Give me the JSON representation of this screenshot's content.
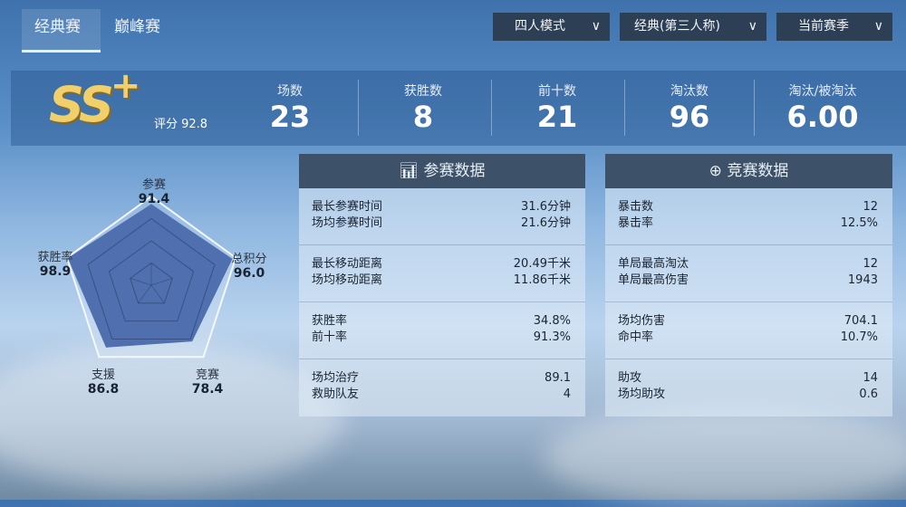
{
  "tabs": [
    {
      "label": "经典赛",
      "active": true
    },
    {
      "label": "巅峰赛",
      "active": false
    }
  ],
  "filters": [
    {
      "label": "四人模式"
    },
    {
      "label": "经典(第三人称)"
    },
    {
      "label": "当前赛季"
    }
  ],
  "rank": {
    "grade": "SS",
    "plus": "+",
    "score_label": "评分 92.8"
  },
  "stats": [
    {
      "label": "场数",
      "value": "23"
    },
    {
      "label": "获胜数",
      "value": "8"
    },
    {
      "label": "前十数",
      "value": "21"
    },
    {
      "label": "淘汰数",
      "value": "96"
    },
    {
      "label": "淘汰/被淘汰",
      "value": "6.00"
    }
  ],
  "chart_data": {
    "type": "radar",
    "range": [
      0,
      100
    ],
    "axes": [
      {
        "label": "参赛",
        "value": "91.4"
      },
      {
        "label": "总积分",
        "value": "96.0"
      },
      {
        "label": "竞赛",
        "value": "78.4"
      },
      {
        "label": "支援",
        "value": "86.8"
      },
      {
        "label": "获胜率",
        "value": "98.9"
      }
    ],
    "fill": "#4f6fae"
  },
  "panels": [
    {
      "title": "参赛数据",
      "icon": "bar-chart-icon",
      "groups": [
        [
          {
            "k": "最长参赛时间",
            "v": "31.6分钟"
          },
          {
            "k": "场均参赛时间",
            "v": "21.6分钟"
          }
        ],
        [
          {
            "k": "最长移动距离",
            "v": "20.49千米"
          },
          {
            "k": "场均移动距离",
            "v": "11.86千米"
          }
        ],
        [
          {
            "k": "获胜率",
            "v": "34.8%"
          },
          {
            "k": "前十率",
            "v": "91.3%"
          }
        ],
        [
          {
            "k": "场均治疗",
            "v": "89.1"
          },
          {
            "k": "救助队友",
            "v": "4"
          }
        ]
      ]
    },
    {
      "title": "竞赛数据",
      "icon": "crosshair-icon",
      "groups": [
        [
          {
            "k": "暴击数",
            "v": "12"
          },
          {
            "k": "暴击率",
            "v": "12.5%"
          }
        ],
        [
          {
            "k": "单局最高淘汰",
            "v": "12"
          },
          {
            "k": "单局最高伤害",
            "v": "1943"
          }
        ],
        [
          {
            "k": "场均伤害",
            "v": "704.1"
          },
          {
            "k": "命中率",
            "v": "10.7%"
          }
        ],
        [
          {
            "k": "助攻",
            "v": "14"
          },
          {
            "k": "场均助攻",
            "v": "0.6"
          }
        ]
      ]
    }
  ]
}
